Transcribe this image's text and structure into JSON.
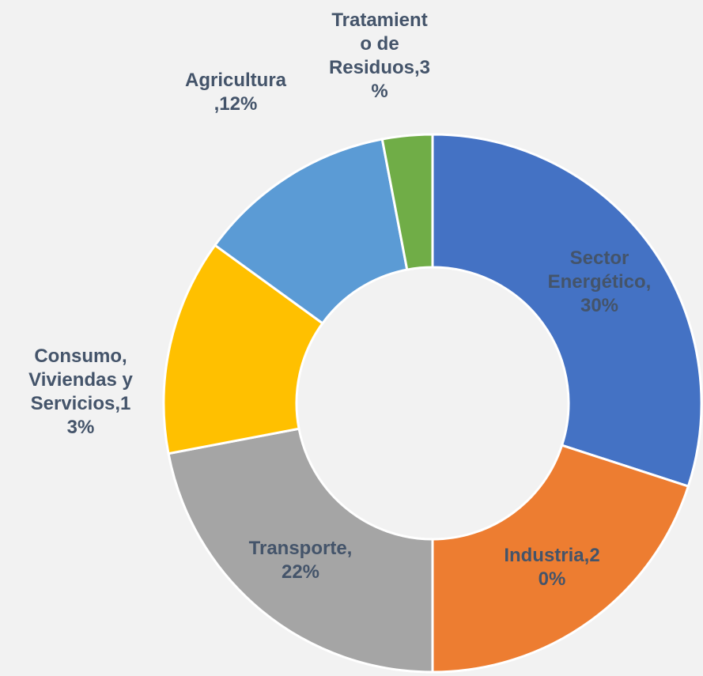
{
  "chart_data": {
    "type": "pie",
    "variant": "donut",
    "title": "",
    "slices": [
      {
        "name": "Sector Energético",
        "value": 30,
        "label": "Sector\nEnergético,\n30%",
        "color": "#4472c4"
      },
      {
        "name": "Industria",
        "value": 20,
        "label": "Industria,2\n0%",
        "color": "#ed7d31"
      },
      {
        "name": "Transporte",
        "value": 22,
        "label": "Transporte,\n22%",
        "color": "#a5a5a5"
      },
      {
        "name": "Consumo, Viviendas y Servicios",
        "value": 13,
        "label": "Consumo,\nViviendas y\nServicios,1\n3%",
        "color": "#ffc000"
      },
      {
        "name": "Agricultura",
        "value": 12,
        "label": "Agricultura\n,12%",
        "color": "#5b9bd5"
      },
      {
        "name": "Tratamiento de Residuos",
        "value": 3,
        "label": "Tratamient\no de\nResiduos,3\n%",
        "color": "#70ad47"
      }
    ],
    "label_color": "#44546a",
    "background": "#f2f2f2",
    "legend": "none"
  }
}
